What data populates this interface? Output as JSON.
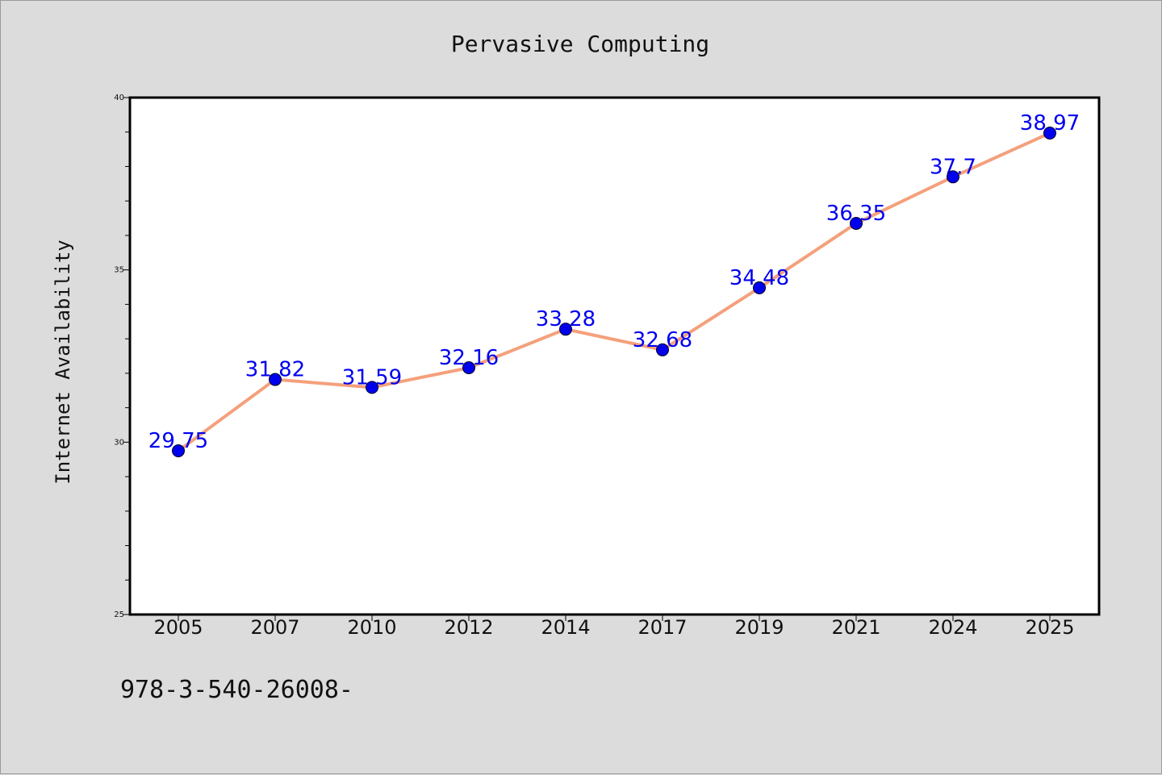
{
  "chart_data": {
    "type": "line",
    "title": "Pervasive Computing",
    "xlabel": "",
    "ylabel": "Internet Availability",
    "categories": [
      "2005",
      "2007",
      "2010",
      "2012",
      "2014",
      "2017",
      "2019",
      "2021",
      "2024",
      "2025"
    ],
    "values": [
      29.75,
      31.82,
      31.59,
      32.16,
      33.28,
      32.68,
      34.48,
      36.35,
      37.7,
      38.97
    ],
    "data_labels": [
      "29.75",
      "31.82",
      "31.59",
      "32.16",
      "33.28",
      "32.68",
      "34.48",
      "36.35",
      "37.7",
      "38.97"
    ],
    "ylim": [
      25,
      40
    ],
    "yticks": [
      25,
      30,
      35,
      40
    ],
    "grid": false,
    "legend": "none"
  },
  "footer_text": "978-3-540-26008-",
  "colors": {
    "background": "#dcdcdc",
    "plot_background": "#ffffff",
    "line": "#f4a07c",
    "marker": "#0000ee",
    "data_label": "#0000ee",
    "axis": "#000000"
  }
}
